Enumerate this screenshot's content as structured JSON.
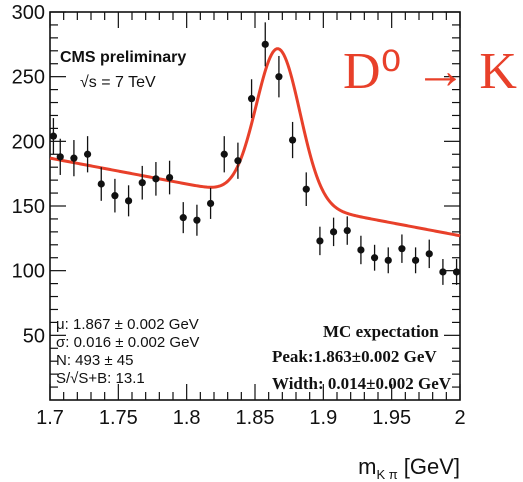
{
  "chart_data": {
    "type": "scatter",
    "xlabel": "m",
    "xlabel_sub": "K π",
    "xlabel_unit": "[GeV]",
    "ylabel": "",
    "xlim": [
      1.7,
      2.0
    ],
    "ylim": [
      0,
      300
    ],
    "x_ticks": [
      "1.7",
      "1.75",
      "1.8",
      "1.85",
      "1.9",
      "1.95",
      "2"
    ],
    "y_ticks": [
      "50",
      "100",
      "150",
      "200",
      "250",
      "300"
    ],
    "series": [
      {
        "type": "points_with_errors",
        "x": [
          1.7025,
          1.7075,
          1.7175,
          1.7275,
          1.7375,
          1.7475,
          1.7575,
          1.7675,
          1.7775,
          1.7875,
          1.7975,
          1.8075,
          1.8175,
          1.8275,
          1.8375,
          1.8475,
          1.8575,
          1.8675,
          1.8775,
          1.8875,
          1.8975,
          1.9075,
          1.9175,
          1.9275,
          1.9375,
          1.9475,
          1.9575,
          1.9675,
          1.9775,
          1.9875,
          1.9975
        ],
        "y": [
          204,
          188,
          187,
          190,
          167,
          158,
          154,
          168,
          171,
          172,
          141,
          139,
          152,
          190,
          185,
          233,
          275,
          250,
          201,
          163,
          123,
          130,
          131,
          116,
          110,
          108,
          117,
          108,
          113,
          99,
          99
        ],
        "err": [
          14,
          14,
          14,
          14,
          13,
          13,
          12,
          13,
          13,
          13,
          12,
          12,
          12,
          14,
          14,
          15,
          17,
          16,
          14,
          13,
          11,
          11,
          11,
          11,
          10,
          10,
          11,
          10,
          11,
          10,
          10
        ]
      },
      {
        "type": "fit_curve",
        "background": {
          "a": 187,
          "b": -200,
          "c": 1.7
        },
        "peak": {
          "mu": 1.867,
          "sigma": 0.016,
          "amplitude": 118
        },
        "color": "#e8402a"
      }
    ],
    "annotations": {
      "experiment": "CMS preliminary",
      "energy": "√s = 7 TeV",
      "decay": "D⁰ → K",
      "fit_results": [
        "μ: 1.867 ± 0.002 GeV",
        "σ: 0.016 ± 0.002 GeV",
        "N:  493 ±  45",
        "S/√S+B: 13.1"
      ],
      "mc_title": "MC expectation",
      "mc_peak": "Peak:1.863±0.002 GeV",
      "mc_width": "Width: 0.014±0.002 GeV"
    },
    "colors": {
      "fit": "#e8402a",
      "points": "#111111"
    }
  }
}
